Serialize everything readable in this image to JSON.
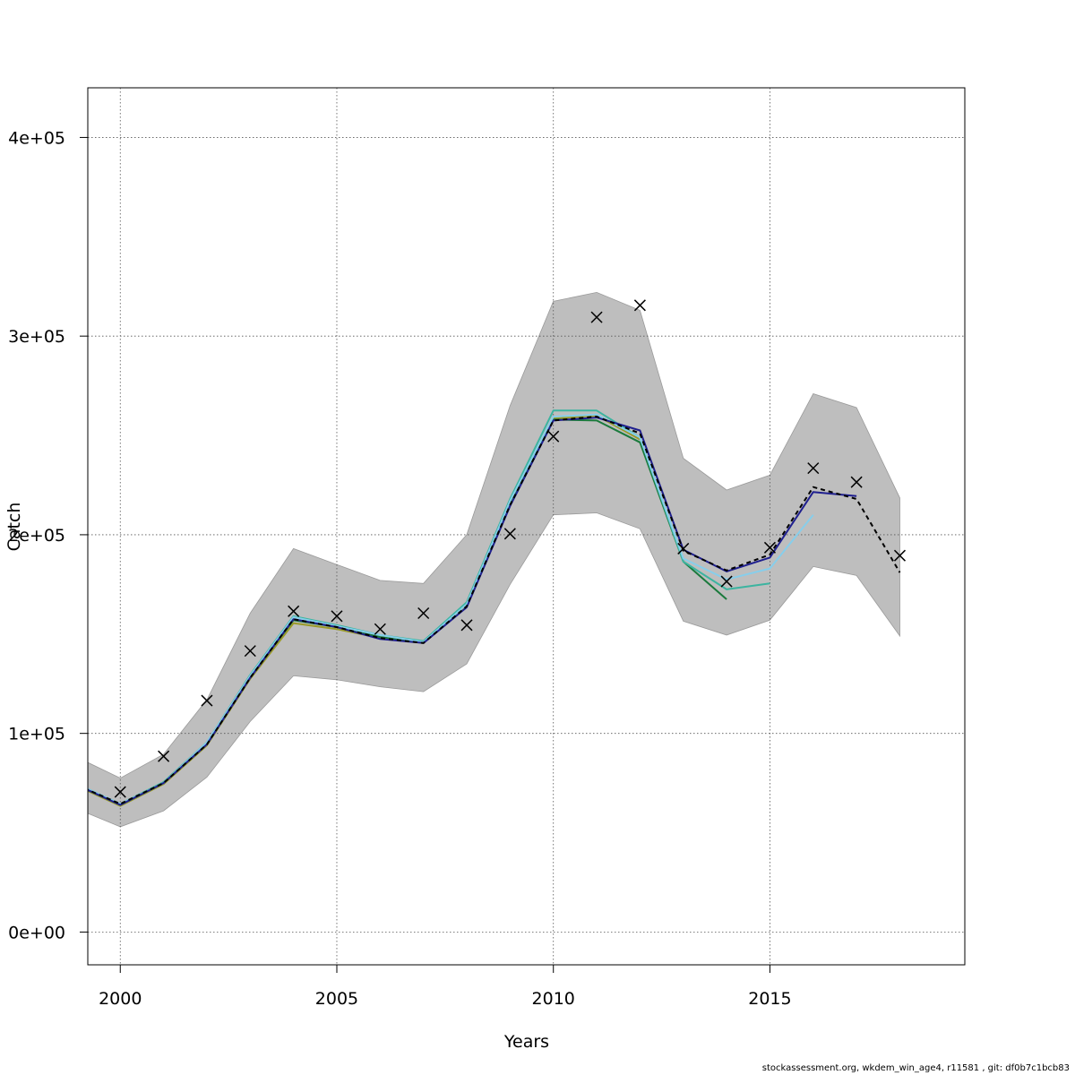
{
  "chart_data": {
    "type": "line",
    "title": "",
    "xlabel": "Years",
    "ylabel": "Catch",
    "xlim": [
      1999.25,
      2019.5
    ],
    "ylim": [
      -16500,
      425000
    ],
    "grid": true,
    "x_ticks": [
      2000,
      2005,
      2010,
      2015
    ],
    "x_tick_labels": [
      "2000",
      "2005",
      "2010",
      "2015"
    ],
    "y_ticks": [
      0,
      100000,
      200000,
      300000,
      400000
    ],
    "y_tick_labels": [
      "0e+00",
      "1e+05",
      "2e+05",
      "3e+05",
      "4e+05"
    ],
    "band": {
      "x": [
        1999,
        2000,
        2001,
        2002,
        2003,
        2004,
        2005,
        2006,
        2007,
        2008,
        2009,
        2010,
        2011,
        2012,
        2013,
        2014,
        2015,
        2016,
        2017,
        2018
      ],
      "lower": [
        62000,
        53000,
        61000,
        78000,
        106000,
        129000,
        127000,
        123500,
        121000,
        135000,
        175000,
        210000,
        211000,
        203000,
        156500,
        149500,
        157000,
        184000,
        179500,
        149000
      ],
      "upper": [
        88000,
        77500,
        89500,
        117000,
        160500,
        193000,
        185000,
        177000,
        175500,
        200000,
        265000,
        317500,
        322000,
        313000,
        238500,
        222500,
        230000,
        271000,
        264000,
        218500
      ],
      "color": "#bebebe"
    },
    "observed": {
      "x": [
        2000,
        2001,
        2002,
        2003,
        2004,
        2005,
        2006,
        2007,
        2008,
        2009,
        2010,
        2011,
        2012,
        2013,
        2014,
        2015,
        2016,
        2017,
        2018
      ],
      "y": [
        70500,
        88500,
        116500,
        141500,
        161500,
        159000,
        152500,
        160500,
        154500,
        200500,
        249500,
        309500,
        315500,
        193000,
        176500,
        193500,
        233500,
        226500,
        189500
      ]
    },
    "series": [
      {
        "color": "#000000",
        "dashed": true,
        "x": [
          1999,
          2000,
          2001,
          2002,
          2003,
          2004,
          2005,
          2006,
          2007,
          2008,
          2009,
          2010,
          2011,
          2012,
          2013,
          2014,
          2015,
          2016,
          2017,
          2018
        ],
        "y": [
          74000,
          64500,
          75000,
          94500,
          128000,
          157500,
          153500,
          148000,
          145500,
          164000,
          215000,
          257500,
          259500,
          251000,
          192000,
          182000,
          190000,
          224000,
          218000,
          181000
        ]
      },
      {
        "color": "#1f1f8f",
        "x": [
          1999,
          2000,
          2001,
          2002,
          2003,
          2004,
          2005,
          2006,
          2007,
          2008,
          2009,
          2010,
          2011,
          2012,
          2013,
          2014,
          2015,
          2016,
          2017
        ],
        "y": [
          74000,
          64000,
          75000,
          94500,
          128000,
          157500,
          153500,
          147500,
          145500,
          163500,
          214500,
          257500,
          259000,
          252500,
          192500,
          181500,
          188500,
          221500,
          219500
        ]
      },
      {
        "color": "#87ceeb",
        "x": [
          1999,
          2000,
          2001,
          2002,
          2003,
          2004,
          2005,
          2006,
          2007,
          2008,
          2009,
          2010,
          2011,
          2012,
          2013,
          2014,
          2015,
          2016
        ],
        "y": [
          74500,
          64500,
          75000,
          95500,
          129000,
          158500,
          154000,
          149500,
          146000,
          165000,
          217000,
          259500,
          260500,
          249000,
          188000,
          177500,
          183000,
          210000
        ]
      },
      {
        "color": "#3cb4a0",
        "x": [
          1999,
          2000,
          2001,
          2002,
          2003,
          2004,
          2005,
          2006,
          2007,
          2008,
          2009,
          2010,
          2011,
          2012,
          2013,
          2014,
          2015
        ],
        "y": [
          74500,
          64500,
          75500,
          95500,
          129500,
          159000,
          154500,
          149500,
          146500,
          166000,
          218000,
          262500,
          262500,
          249000,
          186500,
          172500,
          175500
        ]
      },
      {
        "color": "#1a7a3c",
        "x": [
          1999,
          2000,
          2001,
          2002,
          2003,
          2004,
          2005,
          2006,
          2007,
          2008,
          2009,
          2010,
          2011,
          2012,
          2013,
          2014
        ],
        "y": [
          74000,
          64000,
          75000,
          95000,
          128500,
          157000,
          153500,
          148500,
          146000,
          165500,
          216500,
          258000,
          257500,
          246500,
          186500,
          167500
        ]
      },
      {
        "color": "#9a9a28",
        "x": [
          1999,
          2000,
          2001,
          2002,
          2003,
          2004,
          2005,
          2006,
          2007,
          2008,
          2009,
          2010,
          2011,
          2012
        ],
        "y": [
          73500,
          63500,
          74500,
          94000,
          127500,
          155500,
          152500,
          148000,
          145500,
          164500,
          216000,
          258500,
          260000,
          248000
        ]
      }
    ]
  },
  "footer": "stockassessment.org, wkdem_win_age4, r11581 , git: df0b7c1bcb83"
}
